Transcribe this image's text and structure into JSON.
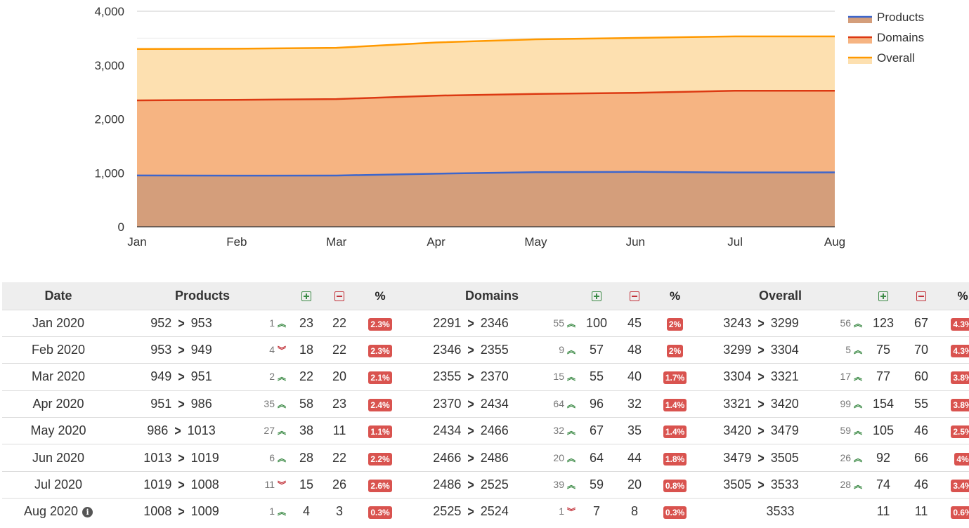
{
  "chart_data": {
    "type": "area",
    "categories": [
      "Jan",
      "Feb",
      "Mar",
      "Apr",
      "May",
      "Jun",
      "Jul",
      "Aug"
    ],
    "ylim": [
      0,
      4000
    ],
    "yticks": [
      "0",
      "1,000",
      "2,000",
      "3,000",
      "4,000"
    ],
    "legend_position": "top-right",
    "grid": true,
    "series": [
      {
        "name": "Products",
        "color": "#3d66cc",
        "fill": "#d49e7b",
        "values": [
          953,
          949,
          951,
          986,
          1013,
          1019,
          1008,
          1009
        ]
      },
      {
        "name": "Domains",
        "color": "#dc3912",
        "fill": "#f6b482",
        "values": [
          2346,
          2355,
          2370,
          2434,
          2466,
          2486,
          2525,
          2524
        ]
      },
      {
        "name": "Overall",
        "color": "#ff9900",
        "fill": "#fde0b0",
        "values": [
          3299,
          3304,
          3321,
          3420,
          3479,
          3505,
          3533,
          3533
        ]
      }
    ]
  },
  "table": {
    "headers": {
      "date": "Date",
      "products": "Products",
      "domains": "Domains",
      "overall": "Overall"
    },
    "icons": {
      "added": "plus-square-icon",
      "removed": "minus-square-icon",
      "percent": "percent-icon",
      "up": "double-chevron-up-icon",
      "down": "double-chevron-down-icon",
      "info": "info-icon"
    },
    "rows": [
      {
        "date": "Jan 2020",
        "info": false,
        "products": {
          "from": "952",
          "to": "953",
          "diff": "1",
          "dir": "up",
          "added": "23",
          "removed": "22",
          "pct": "2.3%"
        },
        "domains": {
          "from": "2291",
          "to": "2346",
          "diff": "55",
          "dir": "up",
          "added": "100",
          "removed": "45",
          "pct": "2%"
        },
        "overall": {
          "from": "3243",
          "to": "3299",
          "diff": "56",
          "dir": "up",
          "added": "123",
          "removed": "67",
          "pct": "4.3%"
        }
      },
      {
        "date": "Feb 2020",
        "info": false,
        "products": {
          "from": "953",
          "to": "949",
          "diff": "4",
          "dir": "down",
          "added": "18",
          "removed": "22",
          "pct": "2.3%"
        },
        "domains": {
          "from": "2346",
          "to": "2355",
          "diff": "9",
          "dir": "up",
          "added": "57",
          "removed": "48",
          "pct": "2%"
        },
        "overall": {
          "from": "3299",
          "to": "3304",
          "diff": "5",
          "dir": "up",
          "added": "75",
          "removed": "70",
          "pct": "4.3%"
        }
      },
      {
        "date": "Mar 2020",
        "info": false,
        "products": {
          "from": "949",
          "to": "951",
          "diff": "2",
          "dir": "up",
          "added": "22",
          "removed": "20",
          "pct": "2.1%"
        },
        "domains": {
          "from": "2355",
          "to": "2370",
          "diff": "15",
          "dir": "up",
          "added": "55",
          "removed": "40",
          "pct": "1.7%"
        },
        "overall": {
          "from": "3304",
          "to": "3321",
          "diff": "17",
          "dir": "up",
          "added": "77",
          "removed": "60",
          "pct": "3.8%"
        }
      },
      {
        "date": "Apr 2020",
        "info": false,
        "products": {
          "from": "951",
          "to": "986",
          "diff": "35",
          "dir": "up",
          "added": "58",
          "removed": "23",
          "pct": "2.4%"
        },
        "domains": {
          "from": "2370",
          "to": "2434",
          "diff": "64",
          "dir": "up",
          "added": "96",
          "removed": "32",
          "pct": "1.4%"
        },
        "overall": {
          "from": "3321",
          "to": "3420",
          "diff": "99",
          "dir": "up",
          "added": "154",
          "removed": "55",
          "pct": "3.8%"
        }
      },
      {
        "date": "May 2020",
        "info": false,
        "products": {
          "from": "986",
          "to": "1013",
          "diff": "27",
          "dir": "up",
          "added": "38",
          "removed": "11",
          "pct": "1.1%"
        },
        "domains": {
          "from": "2434",
          "to": "2466",
          "diff": "32",
          "dir": "up",
          "added": "67",
          "removed": "35",
          "pct": "1.4%"
        },
        "overall": {
          "from": "3420",
          "to": "3479",
          "diff": "59",
          "dir": "up",
          "added": "105",
          "removed": "46",
          "pct": "2.5%"
        }
      },
      {
        "date": "Jun 2020",
        "info": false,
        "products": {
          "from": "1013",
          "to": "1019",
          "diff": "6",
          "dir": "up",
          "added": "28",
          "removed": "22",
          "pct": "2.2%"
        },
        "domains": {
          "from": "2466",
          "to": "2486",
          "diff": "20",
          "dir": "up",
          "added": "64",
          "removed": "44",
          "pct": "1.8%"
        },
        "overall": {
          "from": "3479",
          "to": "3505",
          "diff": "26",
          "dir": "up",
          "added": "92",
          "removed": "66",
          "pct": "4%"
        }
      },
      {
        "date": "Jul 2020",
        "info": false,
        "products": {
          "from": "1019",
          "to": "1008",
          "diff": "11",
          "dir": "down",
          "added": "15",
          "removed": "26",
          "pct": "2.6%"
        },
        "domains": {
          "from": "2486",
          "to": "2525",
          "diff": "39",
          "dir": "up",
          "added": "59",
          "removed": "20",
          "pct": "0.8%"
        },
        "overall": {
          "from": "3505",
          "to": "3533",
          "diff": "28",
          "dir": "up",
          "added": "74",
          "removed": "46",
          "pct": "3.4%"
        }
      },
      {
        "date": "Aug 2020",
        "info": true,
        "products": {
          "from": "1008",
          "to": "1009",
          "diff": "1",
          "dir": "up",
          "added": "4",
          "removed": "3",
          "pct": "0.3%"
        },
        "domains": {
          "from": "2525",
          "to": "2524",
          "diff": "1",
          "dir": "down",
          "added": "7",
          "removed": "8",
          "pct": "0.3%"
        },
        "overall": {
          "single": "3533",
          "added": "11",
          "removed": "11",
          "pct": "0.6%"
        }
      }
    ]
  }
}
